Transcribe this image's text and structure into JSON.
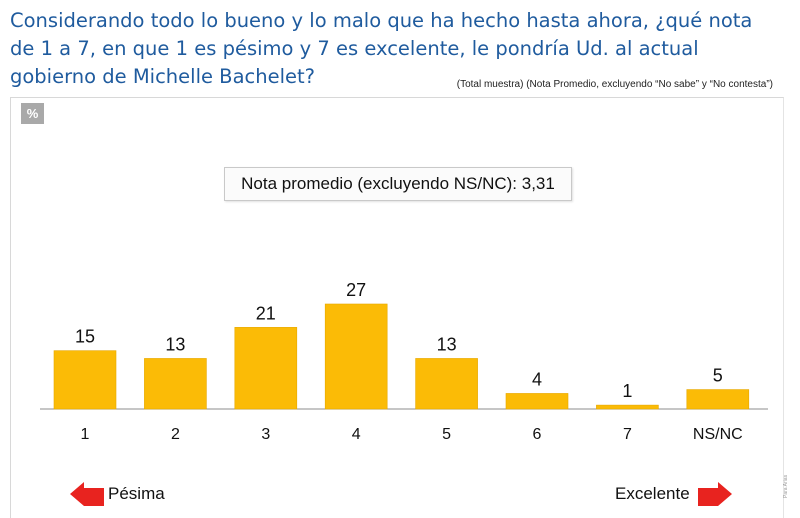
{
  "question": "Considerando todo lo bueno y lo malo que ha hecho hasta ahora, ¿qué nota de 1 a 7, en que 1 es pésimo y 7 es excelente, le pondría Ud. al actual gobierno de Michelle Bachelet?",
  "note": "(Total muestra) (Nota Promedio, excluyendo “No sabe” y “No contesta”)",
  "unit_badge": "%",
  "average_box": "Nota promedio (excluyendo NS/NC): 3,31",
  "scale_left_label": "Pésima",
  "scale_right_label": "Excelente",
  "side_credit": "Para Arias",
  "colors": {
    "bar": "#fbbb06",
    "bar_edge": "#e7a800",
    "arrow": "#e8231f",
    "title": "#1f5b9e"
  },
  "chart_data": {
    "type": "bar",
    "categories": [
      "1",
      "2",
      "3",
      "4",
      "5",
      "6",
      "7",
      "NS/NC"
    ],
    "values": [
      15,
      13,
      21,
      27,
      13,
      4,
      1,
      5
    ],
    "ylim": [
      0,
      30
    ],
    "grid": false,
    "legend": "none",
    "data_labels": true
  }
}
